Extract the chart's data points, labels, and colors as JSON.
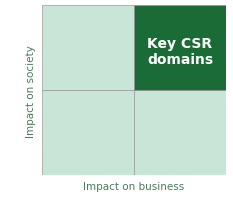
{
  "title": "",
  "xlabel": "Impact on business",
  "ylabel": "Impact on society",
  "key_label_line1": "Key CSR",
  "key_label_line2": "domains",
  "light_green": "#c8e6d8",
  "dark_green": "#1a6b35",
  "axis_color": "#4aaa6a",
  "grid_color": "#999999",
  "text_color_dark": "#4a7a5a",
  "text_color_light": "#ffffff",
  "xlabel_fontsize": 7.5,
  "ylabel_fontsize": 7.5,
  "key_fontsize": 10.0
}
